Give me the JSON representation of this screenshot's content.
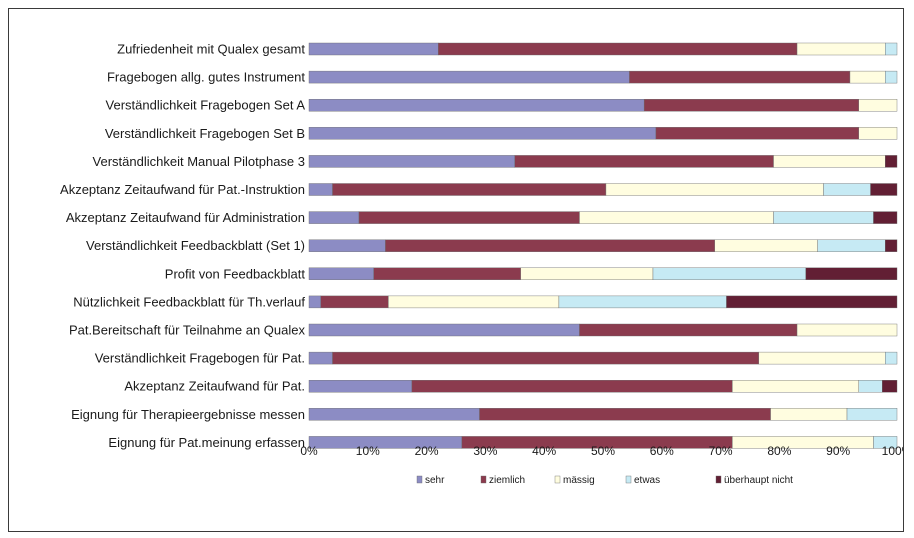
{
  "chart_data": {
    "type": "bar",
    "orientation": "horizontal",
    "stacked": true,
    "percent": true,
    "title": "",
    "xlabel": "",
    "ylabel": "",
    "xlim": [
      0,
      100
    ],
    "x_ticks": [
      "0%",
      "10%",
      "20%",
      "30%",
      "40%",
      "50%",
      "60%",
      "70%",
      "80%",
      "90%",
      "100%"
    ],
    "legend_position": "bottom",
    "grid": false,
    "categories": [
      "Zufriedenheit mit Qualex gesamt",
      "Fragebogen allg. gutes Instrument",
      "Verständlichkeit Fragebogen Set A",
      "Verständlichkeit Fragebogen Set B",
      "Verständlichkeit Manual Pilotphase 3",
      "Akzeptanz Zeitaufwand für Pat.-Instruktion",
      "Akzeptanz Zeitaufwand für Administration",
      "Verständlichkeit Feedbackblatt (Set 1)",
      "Profit von Feedbackblatt",
      "Nützlichkeit Feedbackblatt für Th.verlauf",
      "Pat.Bereitschaft für Teilnahme an Qualex",
      "Verständlichkeit Fragebogen für Pat.",
      "Akzeptanz Zeitaufwand für Pat.",
      "Eignung für Therapieergebnisse messen",
      "Eignung  für Pat.meinung erfassen"
    ],
    "series": [
      {
        "name": "sehr",
        "color": "#8c8cc4",
        "values": [
          22,
          54.5,
          57,
          59,
          35,
          4,
          8.5,
          13,
          11,
          2,
          46,
          4,
          17.5,
          29,
          26
        ]
      },
      {
        "name": "ziemlich",
        "color": "#8b3b4e",
        "values": [
          61,
          37.5,
          36.5,
          34.5,
          44,
          46.5,
          37.5,
          56,
          25,
          11.5,
          37,
          72.5,
          54.5,
          49.5,
          46
        ]
      },
      {
        "name": "mässig",
        "color": "#fffde0",
        "values": [
          15,
          6,
          6.5,
          6.5,
          19,
          37,
          33,
          17.5,
          22.5,
          29,
          17,
          21.5,
          21.5,
          13,
          24
        ]
      },
      {
        "name": "etwas",
        "color": "#c6eaf4",
        "values": [
          2,
          2,
          0,
          0,
          0,
          8,
          17,
          11.5,
          26,
          28.5,
          0,
          2,
          4,
          8.5,
          4
        ]
      },
      {
        "name": "überhaupt nicht",
        "color": "#621f34",
        "values": [
          0,
          0,
          0,
          0,
          2,
          4.5,
          4,
          2,
          15.5,
          29,
          0,
          0,
          2.5,
          0,
          0
        ]
      }
    ]
  }
}
